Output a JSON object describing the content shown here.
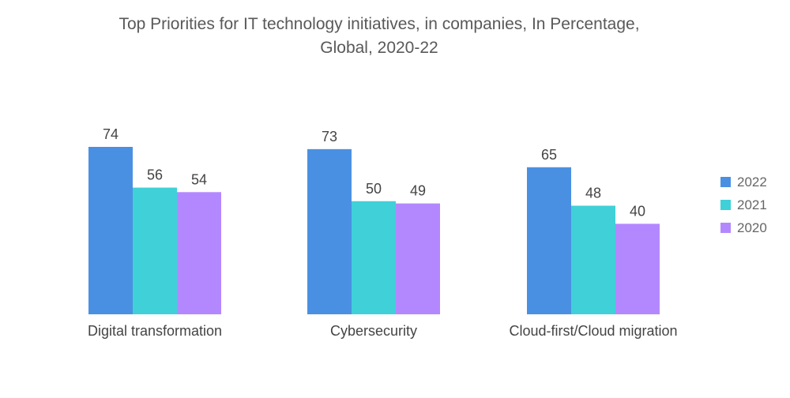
{
  "chart_data": {
    "type": "bar",
    "title": "Top Priorities for IT technology initiatives, in companies, In Percentage, Global, 2020-22",
    "title_lines": [
      "Top Priorities for IT technology initiatives, in companies, In Percentage,",
      "Global, 2020-22"
    ],
    "categories": [
      "Digital transformation",
      "Cybersecurity",
      "Cloud-first/Cloud migration"
    ],
    "series": [
      {
        "name": "2022",
        "color": "#4a90e2",
        "values": [
          74,
          73,
          65
        ]
      },
      {
        "name": "2021",
        "color": "#40d0d8",
        "values": [
          56,
          50,
          48
        ]
      },
      {
        "name": "2020",
        "color": "#b388ff",
        "values": [
          54,
          49,
          40
        ]
      }
    ],
    "xlabel": "",
    "ylabel": "",
    "ylim": [
      0,
      74
    ],
    "grid": false,
    "legend_position": "right"
  }
}
